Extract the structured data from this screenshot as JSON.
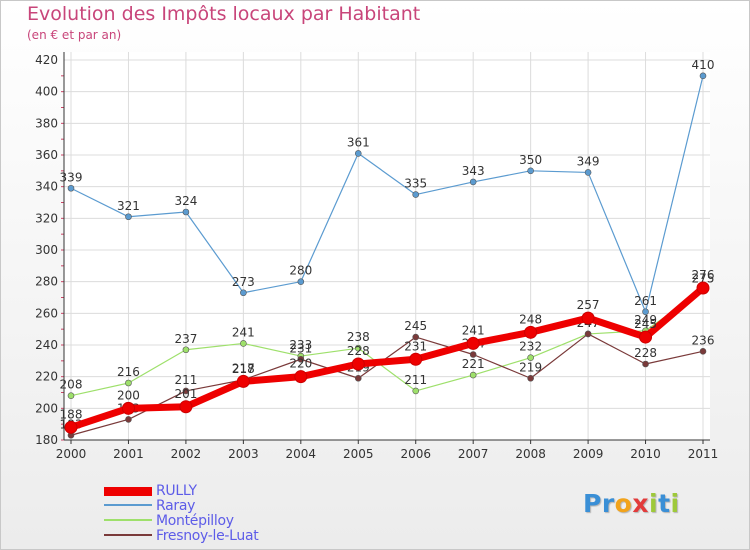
{
  "chart_data": {
    "type": "line",
    "title": "Evolution des Impôts locaux par Habitant",
    "subtitle": "(en € et par an)",
    "categories": [
      "2000",
      "2001",
      "2002",
      "2003",
      "2004",
      "2005",
      "2006",
      "2007",
      "2008",
      "2009",
      "2010",
      "2011"
    ],
    "yticks": [
      "180",
      "200",
      "220",
      "240",
      "260",
      "280",
      "300",
      "320",
      "340",
      "360",
      "380",
      "400",
      "420"
    ],
    "ylim": [
      180,
      420
    ],
    "series": [
      {
        "name": "Raray",
        "color": "#5b9bd0",
        "values": [
          339,
          321,
          324,
          273,
          280,
          361,
          335,
          343,
          350,
          349,
          261,
          410
        ],
        "labels": [
          "339",
          "321",
          "324",
          "273",
          "280",
          "361",
          "335",
          "343",
          "350",
          "349",
          "261",
          "410"
        ]
      },
      {
        "name": "Montépilloy",
        "color": "#9ee06b",
        "values": [
          208,
          216,
          237,
          241,
          233,
          238,
          211,
          221,
          232,
          247,
          249,
          275
        ],
        "labels": [
          "208",
          "216",
          "237",
          "241",
          "233",
          "238",
          "211",
          "221",
          "232",
          "247",
          "249",
          "275"
        ]
      },
      {
        "name": "Fresnoy-le-Luat",
        "color": "#7a3a3a",
        "values": [
          183,
          193,
          211,
          218,
          231,
          219,
          245,
          234,
          219,
          247,
          228,
          236
        ],
        "labels": [
          "183",
          "193",
          "211",
          "218",
          "231",
          "219",
          "245",
          "234",
          "219",
          "247",
          "228",
          "236"
        ]
      },
      {
        "name": "RULLY",
        "color": "#ee0000",
        "values": [
          188,
          200,
          201,
          217,
          220,
          228,
          231,
          241,
          248,
          257,
          245,
          276
        ],
        "labels": [
          "188",
          "200",
          "201",
          "217",
          "220",
          "228",
          "231",
          "241",
          "248",
          "257",
          "245",
          "276"
        ]
      }
    ],
    "legend": [
      "RULLY",
      "Raray",
      "Montépilloy",
      "Fresnoy-le-Luat"
    ]
  },
  "brand": {
    "letters": [
      "P",
      "r",
      "o",
      "x",
      "i",
      "t",
      "i"
    ],
    "colors": [
      "#3a8fd6",
      "#3a8fd6",
      "#f2a31b",
      "#e23b3b",
      "#9ec93a",
      "#3a8fd6",
      "#9ec93a"
    ]
  }
}
